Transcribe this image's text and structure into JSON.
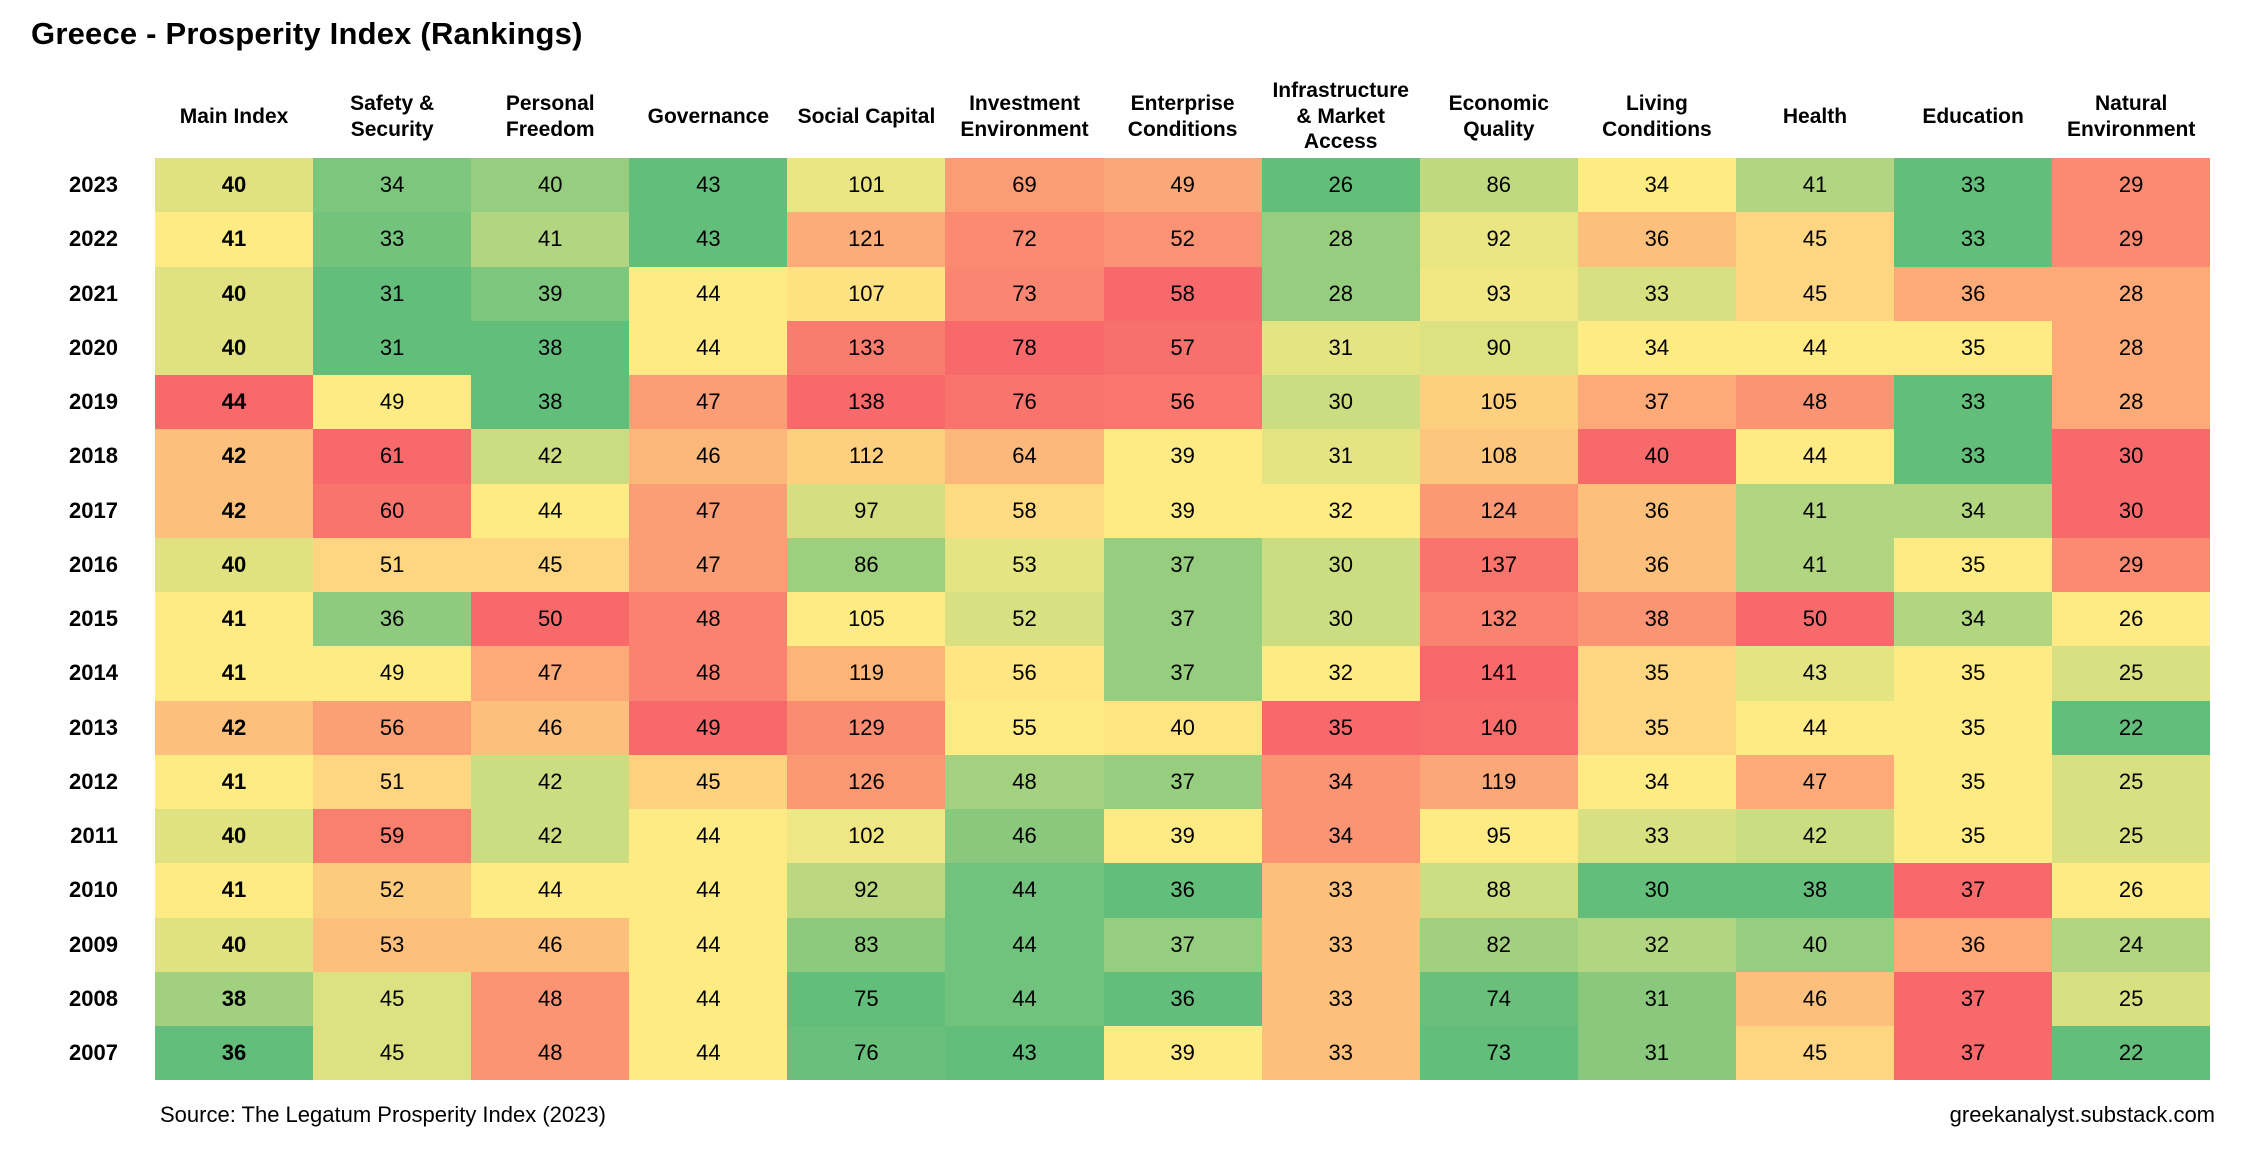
{
  "title": "Greece - Prosperity Index (Rankings)",
  "footer": {
    "source": "Source: The Legatum Prosperity Index (2023)",
    "credit": "greekanalyst.substack.com"
  },
  "scale": {
    "low_color": "#63BE7B",
    "mid_color": "#FFEB84",
    "high_color": "#F8696B",
    "normalization": "per-column min / median / max (lower ranking = greener)"
  },
  "chart_data": {
    "type": "heatmap",
    "title": "Greece - Prosperity Index (Rankings)",
    "legend_position": "none",
    "grid": false,
    "columns": [
      "Main Index",
      "Safety & Security",
      "Personal Freedom",
      "Governance",
      "Social Capital",
      "Investment Environment",
      "Enterprise Conditions",
      "Infrastructure & Market Access",
      "Economic Quality",
      "Living Conditions",
      "Health",
      "Education",
      "Natural Environment"
    ],
    "rows": [
      "2023",
      "2022",
      "2021",
      "2020",
      "2019",
      "2018",
      "2017",
      "2016",
      "2015",
      "2014",
      "2013",
      "2012",
      "2011",
      "2010",
      "2009",
      "2008",
      "2007"
    ],
    "values": [
      [
        40,
        34,
        40,
        43,
        101,
        69,
        49,
        26,
        86,
        34,
        41,
        33,
        29
      ],
      [
        41,
        33,
        41,
        43,
        121,
        72,
        52,
        28,
        92,
        36,
        45,
        33,
        29
      ],
      [
        40,
        31,
        39,
        44,
        107,
        73,
        58,
        28,
        93,
        33,
        45,
        36,
        28
      ],
      [
        40,
        31,
        38,
        44,
        133,
        78,
        57,
        31,
        90,
        34,
        44,
        35,
        28
      ],
      [
        44,
        49,
        38,
        47,
        138,
        76,
        56,
        30,
        105,
        37,
        48,
        33,
        28
      ],
      [
        42,
        61,
        42,
        46,
        112,
        64,
        39,
        31,
        108,
        40,
        44,
        33,
        30
      ],
      [
        42,
        60,
        44,
        47,
        97,
        58,
        39,
        32,
        124,
        36,
        41,
        34,
        30
      ],
      [
        40,
        51,
        45,
        47,
        86,
        53,
        37,
        30,
        137,
        36,
        41,
        35,
        29
      ],
      [
        41,
        36,
        50,
        48,
        105,
        52,
        37,
        30,
        132,
        38,
        50,
        34,
        26
      ],
      [
        41,
        49,
        47,
        48,
        119,
        56,
        37,
        32,
        141,
        35,
        43,
        35,
        25
      ],
      [
        42,
        56,
        46,
        49,
        129,
        55,
        40,
        35,
        140,
        35,
        44,
        35,
        22
      ],
      [
        41,
        51,
        42,
        45,
        126,
        48,
        37,
        34,
        119,
        34,
        47,
        35,
        25
      ],
      [
        40,
        59,
        42,
        44,
        102,
        46,
        39,
        34,
        95,
        33,
        42,
        35,
        25
      ],
      [
        41,
        52,
        44,
        44,
        92,
        44,
        36,
        33,
        88,
        30,
        38,
        37,
        26
      ],
      [
        40,
        53,
        46,
        44,
        83,
        44,
        37,
        33,
        82,
        32,
        40,
        36,
        24
      ],
      [
        38,
        45,
        48,
        44,
        75,
        44,
        36,
        33,
        74,
        31,
        46,
        37,
        25
      ],
      [
        36,
        45,
        48,
        44,
        76,
        43,
        39,
        33,
        73,
        31,
        45,
        37,
        22
      ]
    ]
  }
}
